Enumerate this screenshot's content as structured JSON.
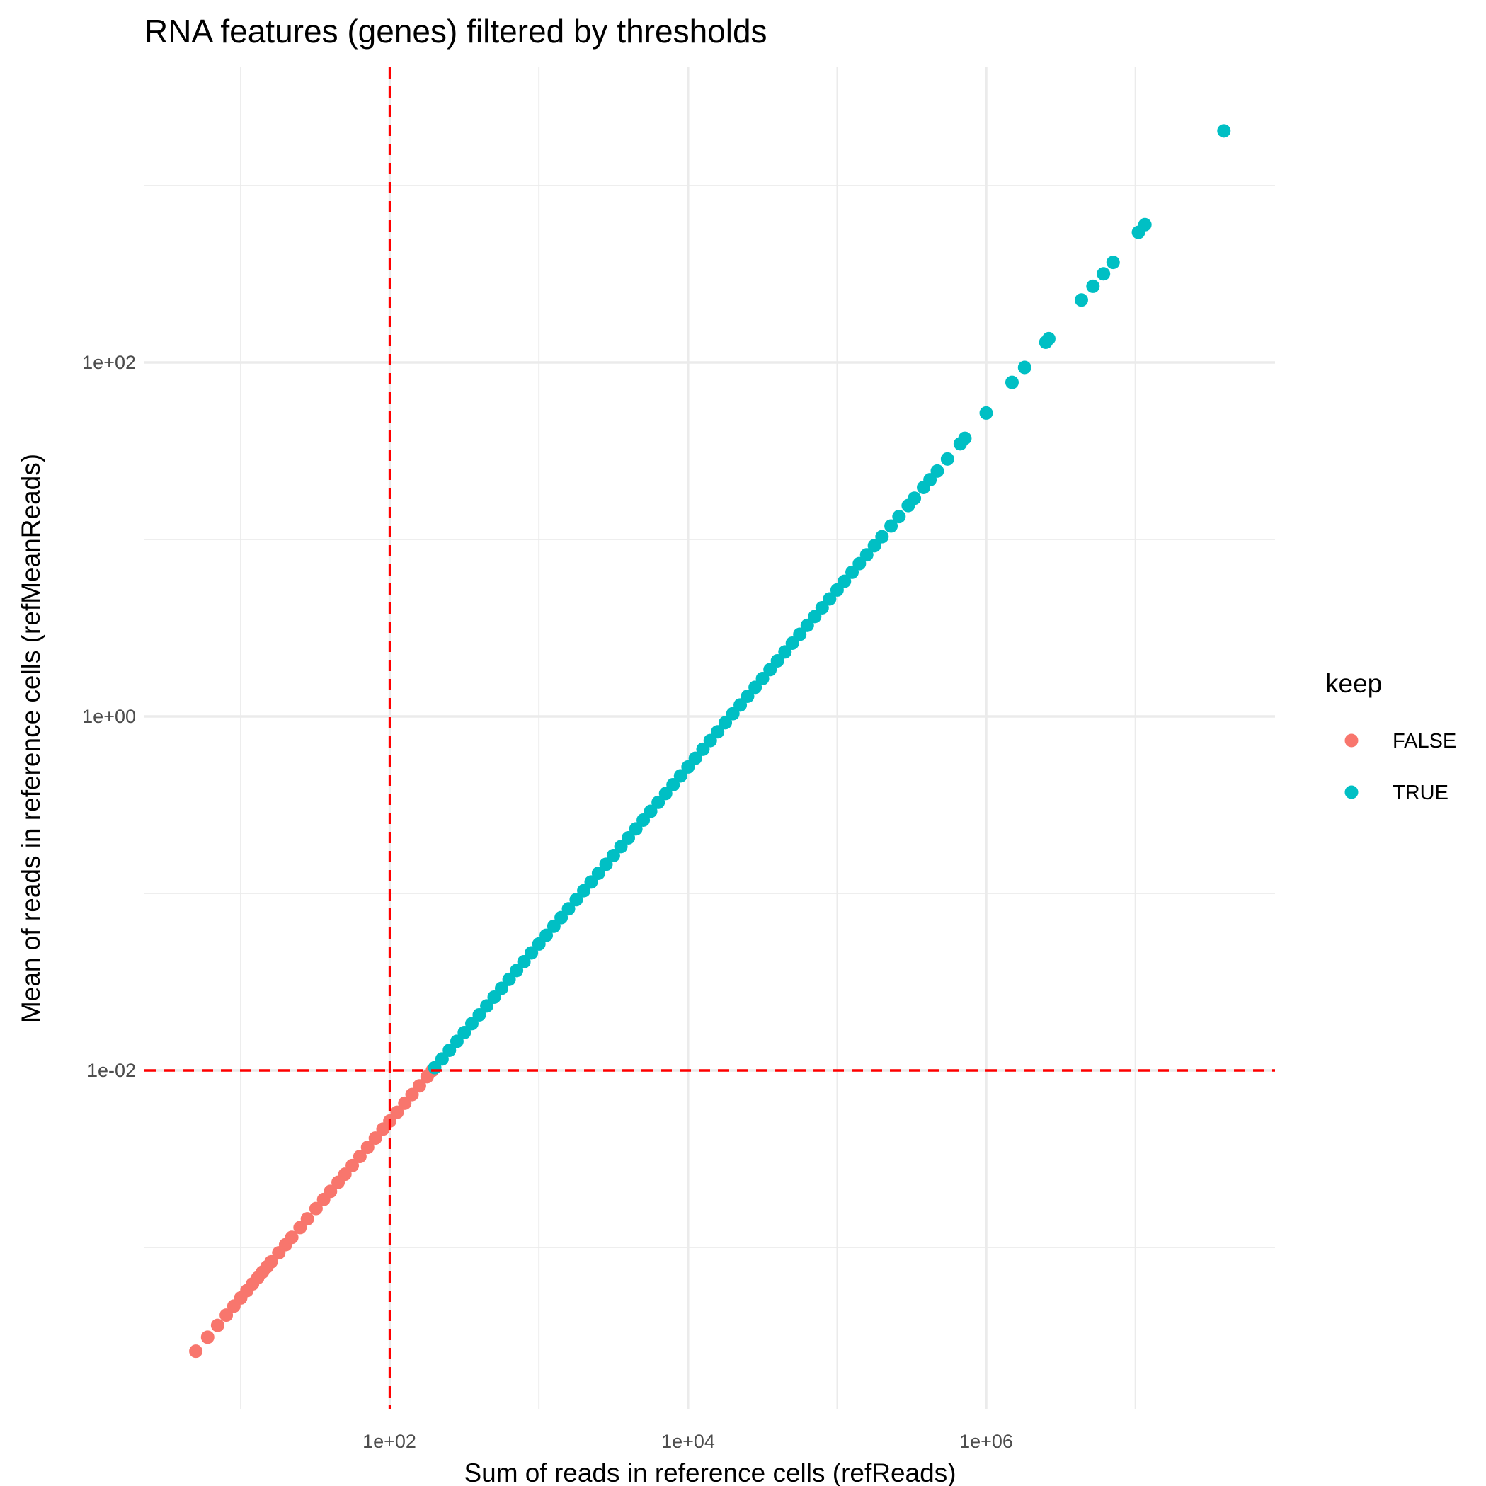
{
  "chart_data": {
    "type": "scatter",
    "title": "RNA features (genes) filtered by thresholds",
    "xlabel": "Sum of reads in reference cells (refReads)",
    "ylabel": "Mean of reads in reference cells (refMeanReads)",
    "x_scale": "log10",
    "y_scale": "log10",
    "xlim": [
      2.5,
      60000000.0
    ],
    "ylim": [
      0.00013,
      4000
    ],
    "x_ticks": [
      "1e+02",
      "1e+04",
      "1e+06"
    ],
    "y_ticks": [
      "1e-02",
      "1e+00",
      "1e+02"
    ],
    "grid": true,
    "y_over_x_ratio": 5.18e-05,
    "thresholds": {
      "x": 100,
      "y": 0.01,
      "color": "#ff0000",
      "style": "dashed"
    },
    "legend": {
      "title": "keep",
      "placement": "right",
      "entries": [
        "FALSE",
        "TRUE"
      ]
    },
    "series": [
      {
        "name": "FALSE",
        "color": "#F8766D",
        "x": [
          5,
          6,
          7,
          8,
          9,
          10,
          11,
          12,
          13,
          14,
          15,
          16,
          18,
          20,
          22,
          25,
          28,
          32,
          36,
          40,
          45,
          50,
          56,
          63,
          71,
          80,
          90,
          100,
          112,
          126,
          141,
          158,
          178,
          193
        ]
      },
      {
        "name": "TRUE",
        "color": "#00BFC4",
        "x": [
          200,
          224,
          251,
          282,
          316,
          355,
          398,
          447,
          501,
          562,
          631,
          708,
          794,
          891,
          1000,
          1120,
          1260,
          1410,
          1580,
          1780,
          2000,
          2240,
          2510,
          2820,
          3160,
          3550,
          3980,
          4470,
          5010,
          5620,
          6310,
          7080,
          7940,
          8910,
          10000,
          11200,
          12600,
          14100,
          15800,
          17800,
          20000,
          22400,
          25100,
          28200,
          31600,
          35500,
          39800,
          44700,
          50100,
          56200,
          63100,
          70800,
          79400,
          89100,
          100000,
          112000,
          126000,
          141000,
          158000,
          178000,
          200000,
          230000,
          260000,
          300000,
          330000,
          380000,
          420000,
          470000,
          550000,
          670000,
          720000,
          1000000,
          1490000,
          1810000,
          2510000,
          2630000,
          4350000,
          5200000,
          6120000,
          7100000,
          10500000,
          11600000,
          39300000
        ]
      }
    ]
  }
}
